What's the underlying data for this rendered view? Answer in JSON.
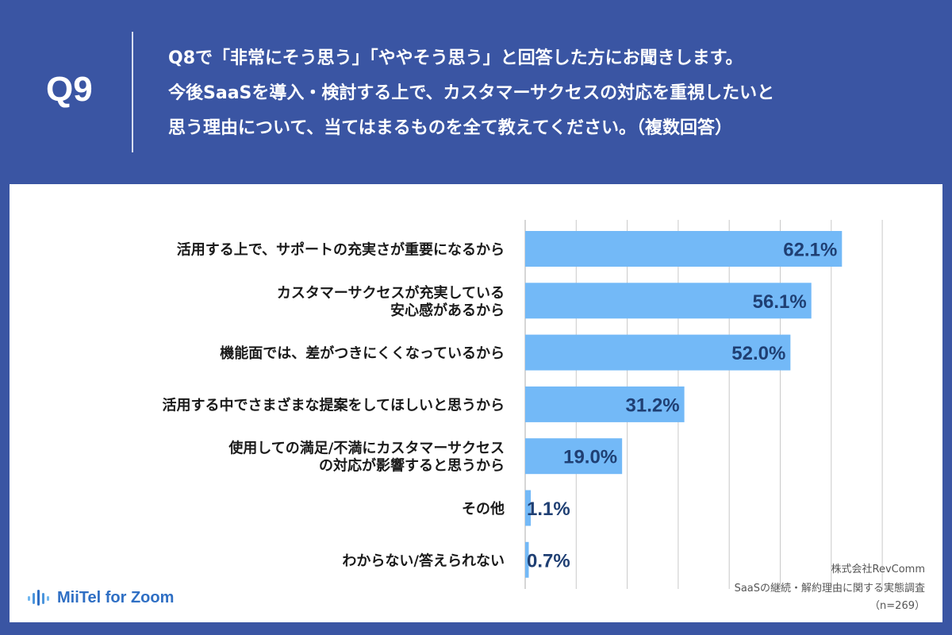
{
  "header": {
    "qnum": "Q9",
    "question": "Q8で「非常にそう思う」「ややそう思う」と回答した方にお聞きします。\n今後SaaSを導入・検討する上で、カスタマーサクセスの対応を重視したいと\n思う理由について、当てはまるものを全て教えてください。（複数回答）"
  },
  "colors": {
    "background": "#3a55a3",
    "bar": "#73b9f7",
    "value_text": "#1f3f73",
    "logo": "#2f6fc4"
  },
  "chart_data": {
    "type": "bar",
    "orientation": "horizontal",
    "categories": [
      [
        "活用する上で、サポートの充実さが重要になるから"
      ],
      [
        "カスタマーサクセスが充実している",
        "安心感があるから"
      ],
      [
        "機能面では、差がつきにくくなっているから"
      ],
      [
        "活用する中でさまざまな提案をしてほしいと思うから"
      ],
      [
        "使用しての満足/不満にカスタマーサクセス",
        "の対応が影響すると思うから"
      ],
      [
        "その他"
      ],
      [
        "わからない/答えられない"
      ]
    ],
    "values": [
      62.1,
      56.1,
      52.0,
      31.2,
      19.0,
      1.1,
      0.7
    ],
    "value_labels": [
      "62.1%",
      "56.1%",
      "52.0%",
      "31.2%",
      "19.0%",
      "1.1%",
      "0.7%"
    ],
    "xlim": [
      0,
      70
    ],
    "grid": true
  },
  "source": {
    "company": "株式会社RevComm",
    "survey": "SaaSの継続・解約理由に関する実態調査",
    "n": "（n=269）"
  },
  "logo": {
    "text": "MiiTel for Zoom",
    "icon": "audio-wave-icon"
  }
}
